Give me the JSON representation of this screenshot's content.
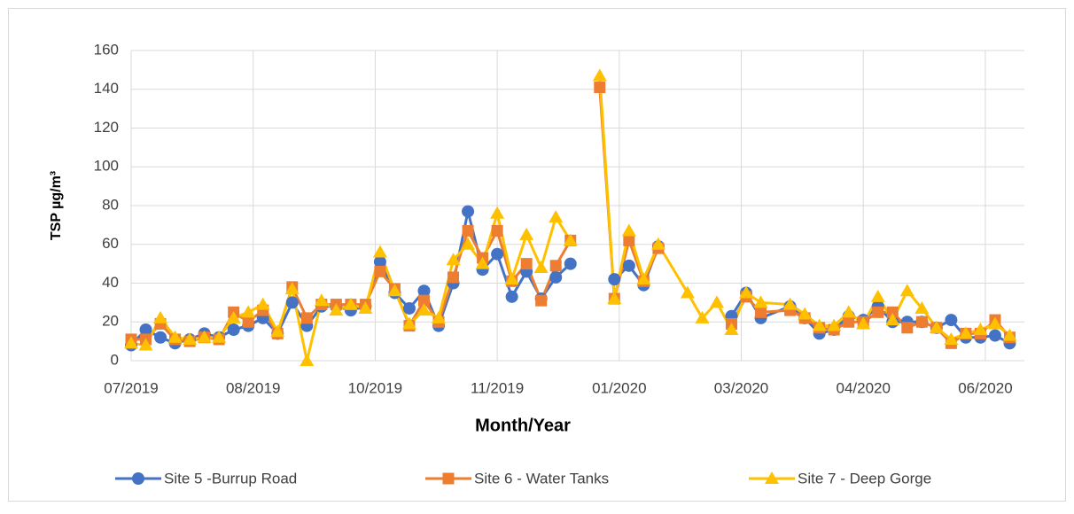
{
  "chart_data": {
    "type": "line",
    "xlabel": "Month/Year",
    "ylabel": "TSP µg/m³",
    "xlim": [
      0,
      366
    ],
    "xticks": [
      {
        "value": 0,
        "label": "07/2019"
      },
      {
        "value": 50,
        "label": "08/2019"
      },
      {
        "value": 100,
        "label": "10/2019"
      },
      {
        "value": 150,
        "label": "11/2019"
      },
      {
        "value": 200,
        "label": "01/2020"
      },
      {
        "value": 250,
        "label": "03/2020"
      },
      {
        "value": 300,
        "label": "04/2020"
      },
      {
        "value": 350,
        "label": "06/2020"
      }
    ],
    "ylim": [
      0,
      160
    ],
    "yticks": [
      0,
      20,
      40,
      60,
      80,
      100,
      120,
      140,
      160
    ],
    "grid": true,
    "legend": "bottom",
    "series": [
      {
        "name": "Site 5 -Burrup Road",
        "color": "#4472c4",
        "marker": "circle",
        "x": [
          0,
          6,
          12,
          18,
          24,
          30,
          36,
          42,
          48,
          54,
          60,
          66,
          72,
          78,
          84,
          90,
          96,
          102,
          108,
          114,
          120,
          126,
          132,
          138,
          144,
          150,
          156,
          162,
          168,
          174,
          180,
          186,
          198,
          204,
          210,
          216,
          222,
          246,
          252,
          258,
          270,
          276,
          282,
          288,
          294,
          300,
          306,
          312,
          318,
          324,
          330,
          336,
          342,
          348,
          354,
          360
        ],
        "values": [
          8,
          16,
          12,
          9,
          11,
          14,
          12,
          16,
          18,
          22,
          14,
          30,
          18,
          28,
          28,
          26,
          28,
          51,
          35,
          27,
          36,
          18,
          40,
          77,
          47,
          55,
          33,
          46,
          32,
          43,
          50,
          null,
          42,
          49,
          39,
          59,
          null,
          23,
          35,
          22,
          28,
          22,
          14,
          16,
          23,
          21,
          28,
          20,
          20,
          20,
          17,
          21,
          12,
          12,
          13,
          9
        ]
      },
      {
        "name": "Site 6 - Water Tanks",
        "color": "#ed7d31",
        "marker": "square",
        "x": [
          0,
          6,
          12,
          18,
          24,
          30,
          36,
          42,
          48,
          54,
          60,
          66,
          72,
          78,
          84,
          90,
          96,
          102,
          108,
          114,
          120,
          126,
          132,
          138,
          144,
          150,
          156,
          162,
          168,
          174,
          180,
          186,
          192,
          198,
          204,
          210,
          216,
          222,
          246,
          252,
          258,
          270,
          276,
          282,
          288,
          294,
          300,
          306,
          312,
          318,
          324,
          330,
          336,
          342,
          348,
          354,
          360
        ],
        "values": [
          11,
          11,
          19,
          11,
          10,
          12,
          11,
          25,
          20,
          26,
          14,
          38,
          22,
          29,
          29,
          29,
          29,
          46,
          37,
          18,
          31,
          20,
          43,
          67,
          53,
          67,
          41,
          50,
          31,
          49,
          62,
          null,
          141,
          32,
          62,
          41,
          58,
          null,
          19,
          33,
          25,
          26,
          22,
          17,
          16,
          20,
          20,
          25,
          25,
          17,
          20,
          17,
          9,
          14,
          14,
          21,
          12
        ]
      },
      {
        "name": "Site 7 - Deep Gorge",
        "color": "#ffc000",
        "marker": "triangle",
        "x": [
          0,
          6,
          12,
          18,
          24,
          30,
          36,
          42,
          48,
          54,
          60,
          66,
          72,
          78,
          84,
          90,
          96,
          102,
          108,
          114,
          120,
          126,
          132,
          138,
          144,
          150,
          156,
          162,
          168,
          174,
          180,
          186,
          192,
          198,
          204,
          210,
          216,
          228,
          234,
          240,
          246,
          252,
          258,
          270,
          276,
          282,
          288,
          294,
          300,
          306,
          312,
          318,
          324,
          330,
          336,
          342,
          348,
          354,
          360
        ],
        "values": [
          9,
          8,
          22,
          12,
          11,
          12,
          12,
          22,
          25,
          29,
          15,
          37,
          0,
          31,
          26,
          29,
          27,
          56,
          36,
          19,
          26,
          22,
          52,
          60,
          50,
          76,
          42,
          65,
          48,
          74,
          62,
          null,
          147,
          32,
          67,
          42,
          60,
          35,
          22,
          30,
          16,
          35,
          30,
          29,
          24,
          18,
          18,
          25,
          19,
          33,
          21,
          36,
          27,
          17,
          11,
          14,
          16,
          19,
          13
        ]
      }
    ]
  }
}
